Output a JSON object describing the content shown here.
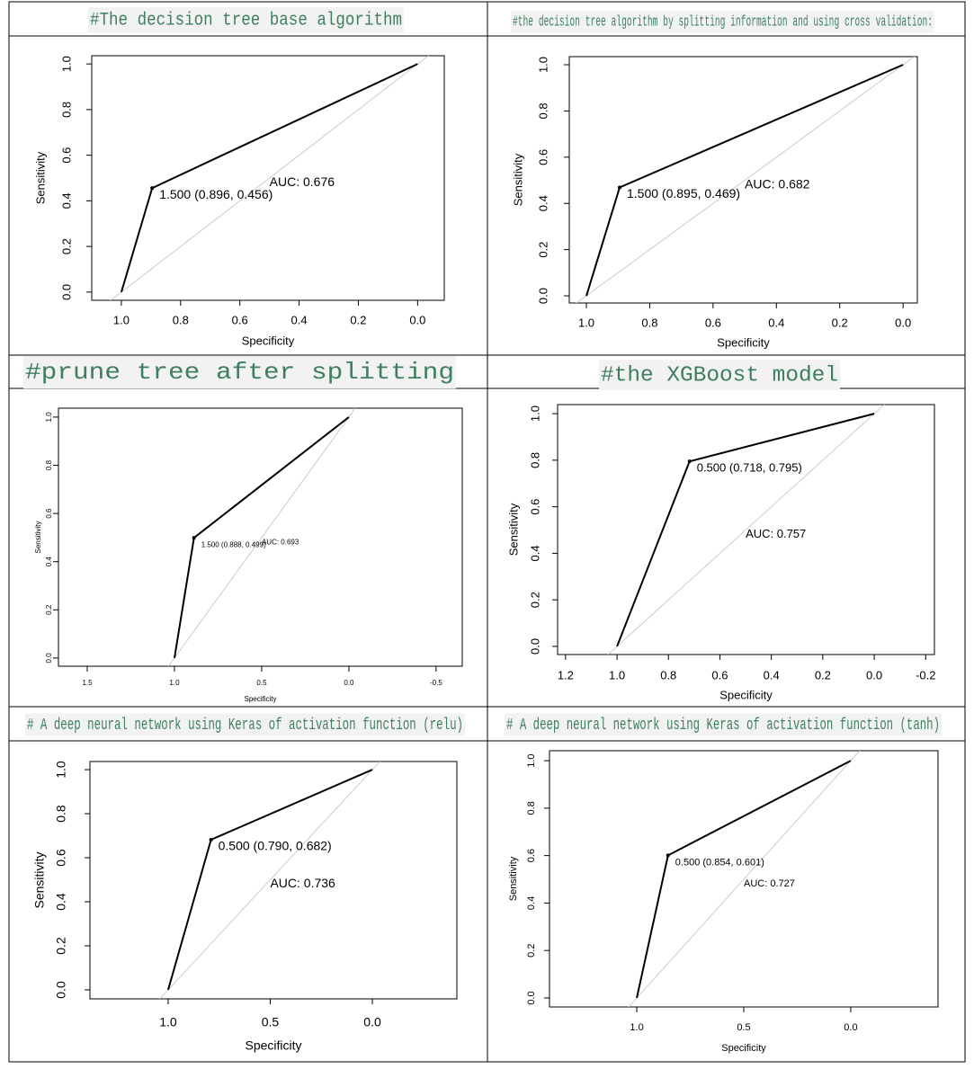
{
  "chart_data": [
    {
      "type": "line",
      "title": "#The decision tree base algorithm",
      "xlabel": "Specificity",
      "ylabel": "Sensitivity",
      "x": [
        1,
        0.896,
        0
      ],
      "values": [
        0,
        0.456,
        1
      ],
      "color": "#000000",
      "diagonal_color": "#cccccc",
      "xlim": [
        1.1,
        -0.09
      ],
      "ylim": [
        -0.036,
        1.036
      ],
      "xticks": [
        {
          "value": 1,
          "label": "1.0"
        },
        0.8,
        0.6,
        0.4,
        0.2,
        {
          "value": 0,
          "label": "0.0"
        }
      ],
      "yticks": [
        {
          "value": 0,
          "label": "0.0"
        },
        0.2,
        0.4,
        0.6,
        0.8,
        {
          "value": 1,
          "label": "1.0"
        }
      ],
      "annotations": [
        "1.500 (0.896, 0.456)",
        "AUC: 0.676"
      ]
    },
    {
      "type": "line",
      "title": "#the decision tree algorithm by splitting information and using cross validation:",
      "xlabel": "Specificity",
      "ylabel": "Sensitivity",
      "x": [
        1,
        0.895,
        0
      ],
      "values": [
        0,
        0.469,
        1
      ],
      "color": "#000000",
      "diagonal_color": "#cccccc",
      "xlim": [
        1.054,
        -0.045
      ],
      "ylim": [
        -0.031,
        1.035
      ],
      "xticks": [
        {
          "value": 1,
          "label": "1.0"
        },
        0.8,
        0.6,
        0.4,
        0.2,
        {
          "value": 0,
          "label": "0.0"
        }
      ],
      "yticks": [
        {
          "value": 0,
          "label": "0.0"
        },
        0.2,
        0.4,
        0.6,
        0.8,
        {
          "value": 1,
          "label": "1.0"
        }
      ],
      "annotations": [
        "1.500 (0.895, 0.469)",
        "AUC: 0.682"
      ]
    },
    {
      "type": "line",
      "title": "#prune tree  after splitting",
      "xlabel": "Specificity",
      "ylabel": "Sensitivity",
      "x": [
        1,
        0.888,
        0
      ],
      "values": [
        0,
        0.499,
        1
      ],
      "color": "#000000",
      "diagonal_color": "#cccccc",
      "xlim": [
        1.665,
        -0.65
      ],
      "ylim": [
        -0.034,
        1.037
      ],
      "xticks": [
        1.5,
        {
          "value": 1,
          "label": "1.0"
        },
        0.5,
        {
          "value": 0,
          "label": "0.0"
        },
        -0.5
      ],
      "yticks": [
        {
          "value": 0,
          "label": "0.0"
        },
        0.2,
        0.4,
        0.6,
        0.8,
        {
          "value": 1,
          "label": "1.0"
        }
      ],
      "annotations": [
        "1.500 (0.888, 0.499)",
        "AUC: 0.693"
      ]
    },
    {
      "type": "line",
      "title": "#the XGBoost model",
      "xlabel": "Specificity",
      "ylabel": "Sensitivity",
      "x": [
        1,
        0.718,
        0
      ],
      "values": [
        0,
        0.795,
        1
      ],
      "color": "#000000",
      "diagonal_color": "#cccccc",
      "xlim": [
        1.231,
        -0.234
      ],
      "ylim": [
        -0.035,
        1.039
      ],
      "xticks": [
        1.2,
        {
          "value": 1,
          "label": "1.0"
        },
        0.8,
        0.6,
        0.4,
        0.2,
        {
          "value": 0,
          "label": "0.0"
        },
        -0.2
      ],
      "yticks": [
        {
          "value": 0,
          "label": "0.0"
        },
        0.2,
        0.4,
        0.6,
        0.8,
        {
          "value": 1,
          "label": "1.0"
        }
      ],
      "annotations": [
        "0.500 (0.718, 0.795)",
        "AUC: 0.757"
      ]
    },
    {
      "type": "line",
      "title": "# A deep neural network using Keras of activation function (relu)",
      "xlabel": "Specificity",
      "ylabel": "Sensitivity",
      "x": [
        1,
        0.79,
        0
      ],
      "values": [
        0,
        0.682,
        1
      ],
      "color": "#000000",
      "diagonal_color": "#cccccc",
      "xlim": [
        1.383,
        -0.414
      ],
      "ylim": [
        -0.041,
        1.037
      ],
      "xticks": [
        {
          "value": 1,
          "label": "1.0"
        },
        0.5,
        {
          "value": 0,
          "label": "0.0"
        }
      ],
      "yticks": [
        {
          "value": 0,
          "label": "0.0"
        },
        0.2,
        0.4,
        0.6,
        0.8,
        {
          "value": 1,
          "label": "1.0"
        }
      ],
      "annotations": [
        "0.500 (0.790, 0.682)",
        "AUC: 0.736"
      ]
    },
    {
      "type": "line",
      "title": "# A deep neural network using Keras of activation function (tanh)",
      "xlabel": "Specificity",
      "ylabel": "Sensitivity",
      "x": [
        1,
        0.854,
        0
      ],
      "values": [
        0,
        0.601,
        1
      ],
      "color": "#000000",
      "diagonal_color": "#cccccc",
      "xlim": [
        1.408,
        -0.408
      ],
      "ylim": [
        -0.038,
        1.042
      ],
      "xticks": [
        {
          "value": 1,
          "label": "1.0"
        },
        0.5,
        {
          "value": 0,
          "label": "0.0"
        }
      ],
      "yticks": [
        {
          "value": 0,
          "label": "0.0"
        },
        0.2,
        0.4,
        0.6,
        0.8,
        {
          "value": 1,
          "label": "1.0"
        }
      ],
      "annotations": [
        "0.500 (0.854, 0.601)",
        "AUC: 0.727"
      ]
    }
  ]
}
